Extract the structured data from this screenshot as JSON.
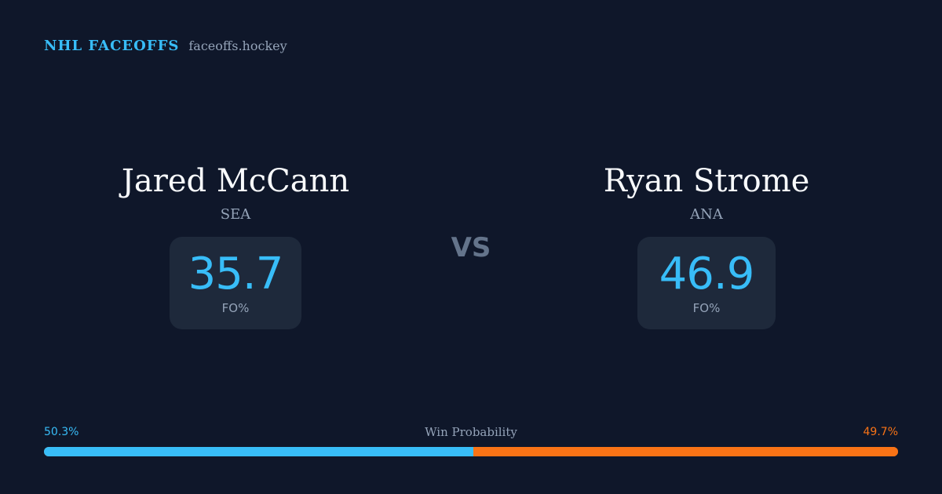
{
  "brand": {
    "name": "NHL FACEOFFS",
    "url": "faceoffs.hockey"
  },
  "player_left": {
    "name": "Jared McCann",
    "team": "SEA",
    "stat_value": "35.7",
    "stat_label": "FO%"
  },
  "vs_label": "VS",
  "player_right": {
    "name": "Ryan Strome",
    "team": "ANA",
    "stat_value": "46.9",
    "stat_label": "FO%"
  },
  "win_probability": {
    "title": "Win Probability",
    "left_label": "50.3%",
    "right_label": "49.7%",
    "left_value": 50.3,
    "right_value": 49.7,
    "left_color": "#38bdf8",
    "right_color": "#f97316"
  }
}
